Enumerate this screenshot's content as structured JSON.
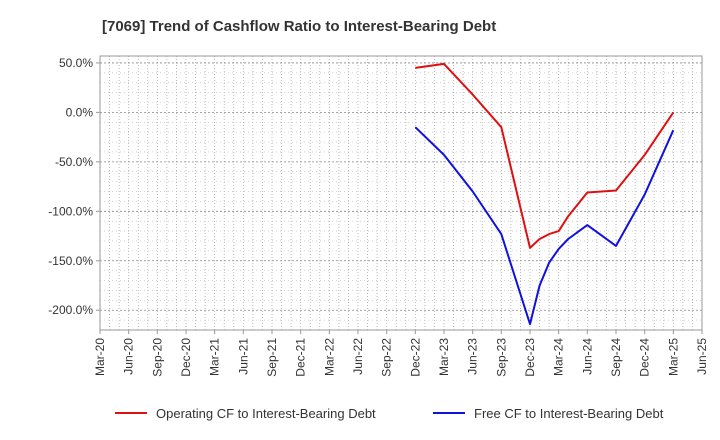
{
  "chart_data": {
    "type": "line",
    "title": "[7069]  Trend of Cashflow Ratio to Interest-Bearing Debt",
    "xlabel": "",
    "ylabel": "",
    "x_ticks": [
      "Mar-20",
      "Jun-20",
      "Sep-20",
      "Dec-20",
      "Mar-21",
      "Jun-21",
      "Sep-21",
      "Dec-21",
      "Mar-22",
      "Jun-22",
      "Sep-22",
      "Dec-22",
      "Mar-23",
      "Jun-23",
      "Sep-23",
      "Dec-23",
      "Mar-24",
      "Jun-24",
      "Sep-24",
      "Dec-24",
      "Mar-25",
      "Jun-25"
    ],
    "y_ticks": [
      50,
      0,
      -50,
      -100,
      -150,
      -200
    ],
    "y_tick_labels": [
      "50.0%",
      "0.0%",
      "-50.0%",
      "-100.0%",
      "-150.0%",
      "-200.0%"
    ],
    "ylim": [
      -220,
      57
    ],
    "grid": true,
    "legend_position": "bottom",
    "series": [
      {
        "name": "Operating CF to Interest-Bearing Debt",
        "color": "#dd1111",
        "points": [
          {
            "x": "Dec-22",
            "y": 45
          },
          {
            "x": "Mar-23",
            "y": 49
          },
          {
            "x": "Jun-23",
            "y": 18
          },
          {
            "x": "Sep-23",
            "y": -15
          },
          {
            "x": "Dec-23",
            "y": -137
          },
          {
            "x": "Jan-24",
            "y": -128
          },
          {
            "x": "Feb-24",
            "y": -123
          },
          {
            "x": "Mar-24",
            "y": -120
          },
          {
            "x": "Apr-24",
            "y": -105
          },
          {
            "x": "Jun-24",
            "y": -81
          },
          {
            "x": "Sep-24",
            "y": -79
          },
          {
            "x": "Dec-24",
            "y": -43
          },
          {
            "x": "Mar-25",
            "y": 0
          }
        ]
      },
      {
        "name": "Free CF to Interest-Bearing Debt",
        "color": "#1111dd",
        "points": [
          {
            "x": "Dec-22",
            "y": -15
          },
          {
            "x": "Mar-23",
            "y": -43
          },
          {
            "x": "Jun-23",
            "y": -80
          },
          {
            "x": "Sep-23",
            "y": -123
          },
          {
            "x": "Dec-23",
            "y": -214
          },
          {
            "x": "Jan-24",
            "y": -175
          },
          {
            "x": "Feb-24",
            "y": -152
          },
          {
            "x": "Mar-24",
            "y": -138
          },
          {
            "x": "Apr-24",
            "y": -128
          },
          {
            "x": "Jun-24",
            "y": -114
          },
          {
            "x": "Sep-24",
            "y": -135
          },
          {
            "x": "Dec-24",
            "y": -83
          },
          {
            "x": "Mar-25",
            "y": -18
          }
        ]
      }
    ]
  }
}
